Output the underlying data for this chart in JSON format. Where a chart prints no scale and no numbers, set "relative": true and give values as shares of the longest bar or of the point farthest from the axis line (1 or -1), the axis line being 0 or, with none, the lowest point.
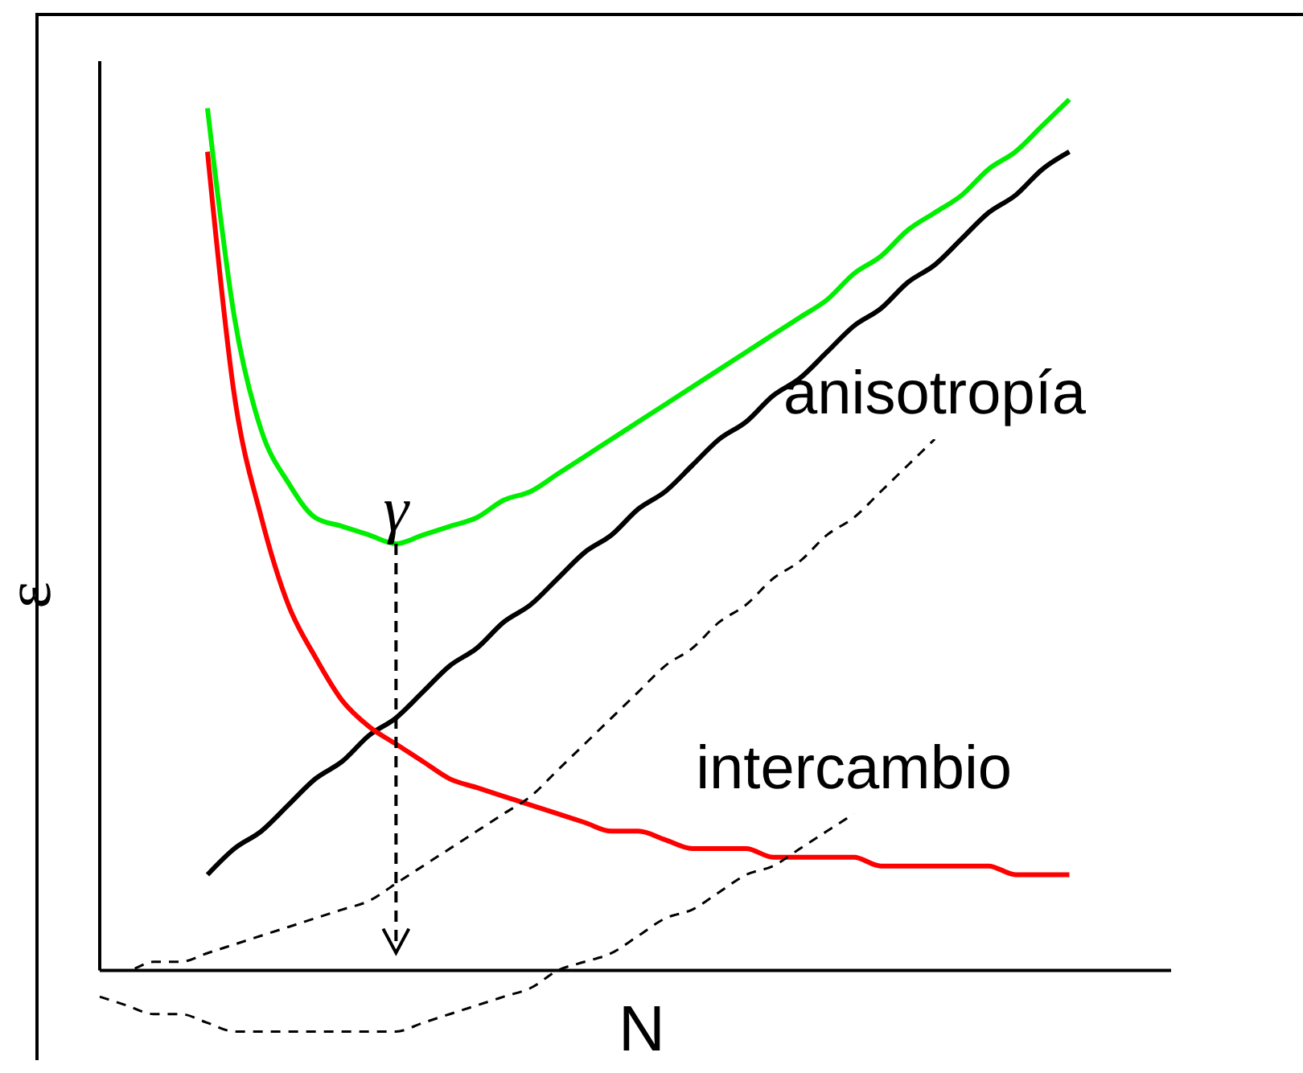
{
  "chart_data": {
    "type": "line",
    "xlabel": "N",
    "ylabel": "ε",
    "relative": true,
    "annotations": [
      "γ"
    ],
    "categories": [
      null,
      null,
      null,
      null,
      null,
      null,
      null,
      null,
      null,
      null,
      null,
      null,
      null,
      null,
      null,
      null,
      null,
      null,
      null,
      null,
      null,
      null,
      null,
      null,
      null,
      null,
      null,
      null,
      null,
      null,
      null,
      null,
      null,
      null,
      null,
      null,
      null,
      null,
      null,
      null
    ],
    "series": [
      {
        "color": "#000000",
        "line_style": "solid",
        "values": [
          null,
          null,
          null,
          null,
          0.11,
          0.14,
          0.16,
          0.19,
          0.22,
          0.24,
          0.27,
          0.29,
          0.32,
          0.35,
          0.37,
          0.4,
          0.42,
          0.45,
          0.48,
          0.5,
          0.53,
          0.55,
          0.58,
          0.61,
          0.63,
          0.66,
          0.68,
          0.71,
          0.74,
          0.76,
          0.79,
          0.81,
          0.84,
          0.87,
          0.89,
          0.92,
          0.94,
          null,
          null,
          null
        ]
      },
      {
        "color": "#ff0000",
        "line_style": "solid",
        "values": [
          null,
          null,
          null,
          null,
          0.94,
          0.66,
          0.52,
          0.42,
          0.36,
          0.31,
          0.28,
          0.26,
          0.24,
          0.22,
          0.21,
          0.2,
          0.19,
          0.18,
          0.17,
          0.16,
          0.16,
          0.15,
          0.14,
          0.14,
          0.14,
          0.13,
          0.13,
          0.13,
          0.13,
          0.12,
          0.12,
          0.12,
          0.12,
          0.12,
          0.11,
          0.11,
          0.11,
          null,
          null,
          null
        ]
      },
      {
        "color": "#00ee00",
        "line_style": "solid",
        "values": [
          null,
          null,
          null,
          null,
          0.99,
          0.75,
          0.62,
          0.56,
          0.52,
          0.51,
          0.5,
          0.49,
          0.5,
          0.51,
          0.52,
          0.54,
          0.55,
          0.57,
          0.59,
          0.61,
          0.63,
          0.65,
          0.67,
          0.69,
          0.71,
          0.73,
          0.75,
          0.77,
          0.8,
          0.82,
          0.85,
          0.87,
          0.89,
          0.92,
          0.94,
          0.97,
          1,
          null,
          null,
          null
        ]
      },
      {
        "name": "anisotropía",
        "color": "#000000",
        "line_style": "dashed",
        "values": [
          0,
          0,
          0.01,
          0.01,
          0.02,
          0.03,
          0.04,
          0.05,
          0.06,
          0.07,
          0.08,
          0.1,
          0.12,
          0.14,
          0.16,
          0.18,
          0.2,
          0.23,
          0.26,
          0.29,
          0.32,
          0.35,
          0.37,
          0.4,
          0.42,
          0.45,
          0.47,
          0.5,
          0.52,
          0.55,
          0.58,
          0.61,
          null,
          null,
          null,
          null,
          null,
          null,
          null,
          null
        ]
      },
      {
        "name": "intercambio",
        "color": "#000000",
        "line_style": "dashed",
        "values": [
          -0.03,
          -0.04,
          -0.05,
          -0.05,
          -0.06,
          -0.07,
          -0.07,
          -0.07,
          -0.07,
          -0.07,
          -0.07,
          -0.07,
          -0.06,
          -0.05,
          -0.04,
          -0.03,
          -0.02,
          0,
          0.01,
          0.02,
          0.04,
          0.06,
          0.07,
          0.09,
          0.11,
          0.12,
          0.14,
          0.16,
          0.18,
          null,
          null,
          null,
          null,
          null,
          null,
          null,
          null,
          null,
          null,
          null
        ]
      }
    ]
  }
}
